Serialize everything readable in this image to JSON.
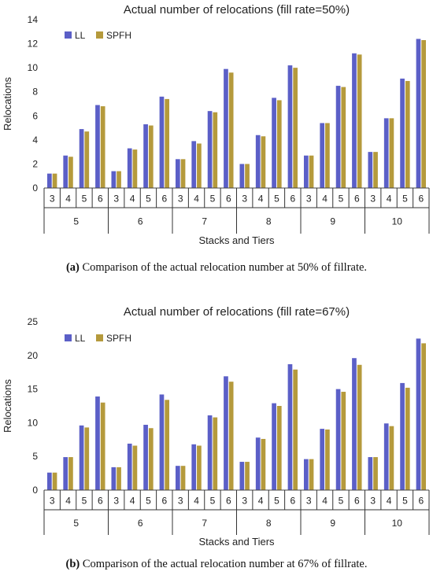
{
  "chart_data": [
    {
      "type": "bar",
      "title": "Actual number of relocations  (fill rate=50%)",
      "xlabel": "Stacks and Tiers",
      "ylabel": "Relocations",
      "ylim": [
        0,
        14
      ],
      "yticks": [
        0,
        2,
        4,
        6,
        8,
        10,
        12,
        14
      ],
      "stacks": [
        "5",
        "6",
        "7",
        "8",
        "9",
        "10"
      ],
      "tiers": [
        "3",
        "4",
        "5",
        "6"
      ],
      "legend_position": "top-left",
      "colors": {
        "LL": "#5b5fc7",
        "SPFH": "#b59a3c"
      },
      "series": [
        {
          "name": "LL",
          "values": [
            1.2,
            2.7,
            4.9,
            6.9,
            1.4,
            3.3,
            5.3,
            7.6,
            2.4,
            3.9,
            6.4,
            9.9,
            2.0,
            4.4,
            7.5,
            10.2,
            2.7,
            5.4,
            8.5,
            11.2,
            3.0,
            5.8,
            9.1,
            12.4
          ]
        },
        {
          "name": "SPFH",
          "values": [
            1.2,
            2.6,
            4.7,
            6.8,
            1.4,
            3.2,
            5.2,
            7.4,
            2.4,
            3.7,
            6.3,
            9.6,
            2.0,
            4.3,
            7.3,
            10.0,
            2.7,
            5.4,
            8.4,
            11.1,
            3.0,
            5.8,
            8.9,
            12.3
          ]
        }
      ],
      "caption_letter": "(a)",
      "caption_text": " Comparison of the actual relocation number at 50% of fillrate."
    },
    {
      "type": "bar",
      "title": "Actual number of relocations  (fill rate=67%)",
      "xlabel": "Stacks and Tiers",
      "ylabel": "Relocations",
      "ylim": [
        0,
        25
      ],
      "yticks": [
        0,
        5,
        10,
        15,
        20,
        25
      ],
      "stacks": [
        "5",
        "6",
        "7",
        "8",
        "9",
        "10"
      ],
      "tiers": [
        "3",
        "4",
        "5",
        "6"
      ],
      "legend_position": "top-left",
      "colors": {
        "LL": "#5b5fc7",
        "SPFH": "#b59a3c"
      },
      "series": [
        {
          "name": "LL",
          "values": [
            2.6,
            4.9,
            9.6,
            13.9,
            3.4,
            6.9,
            9.7,
            14.2,
            3.6,
            6.8,
            11.1,
            16.9,
            4.2,
            7.8,
            12.9,
            18.7,
            4.6,
            9.1,
            15.0,
            19.6,
            4.9,
            9.9,
            15.9,
            22.5
          ]
        },
        {
          "name": "SPFH",
          "values": [
            2.6,
            4.9,
            9.3,
            13.0,
            3.4,
            6.6,
            9.2,
            13.4,
            3.6,
            6.6,
            10.8,
            16.1,
            4.2,
            7.6,
            12.5,
            17.9,
            4.6,
            9.0,
            14.6,
            18.6,
            4.9,
            9.5,
            15.2,
            21.8
          ]
        }
      ],
      "caption_letter": "(b)",
      "caption_text": " Comparison of the actual relocation number at 67% of fillrate."
    }
  ]
}
